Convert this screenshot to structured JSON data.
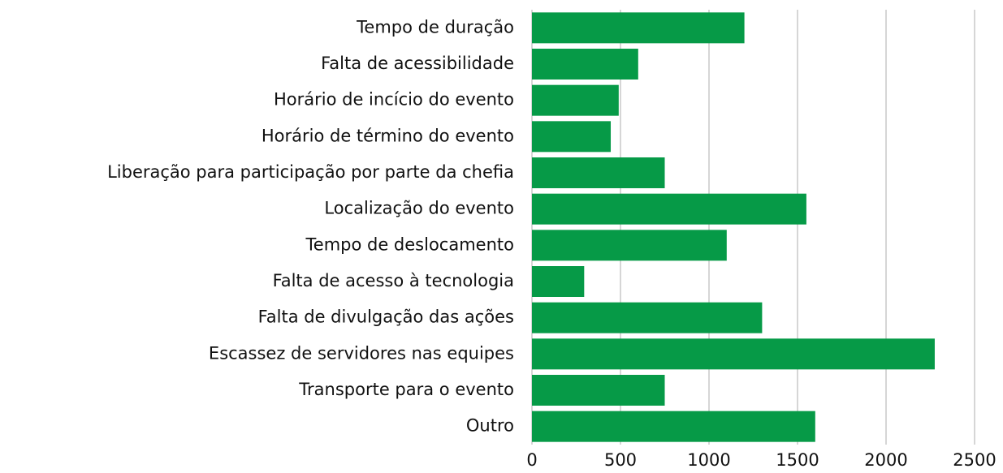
{
  "chart_data": {
    "type": "bar",
    "orientation": "horizontal",
    "categories": [
      "Tempo de duração",
      "Falta de acessibilidade",
      "Horário de incício do evento",
      "Horário de término do evento",
      "Liberação para participação por parte da chefia",
      "Localização do evento",
      "Tempo de deslocamento",
      "Falta de acesso à tecnologia",
      "Falta de divulgação das ações",
      "Escassez de servidores nas equipes",
      "Transporte para o evento",
      "Outro"
    ],
    "values": [
      1200,
      600,
      490,
      445,
      750,
      1550,
      1100,
      295,
      1300,
      2275,
      750,
      1600
    ],
    "color": "#069a47",
    "xlim": [
      0,
      2500
    ],
    "xticks": [
      0,
      500,
      1000,
      1500,
      2000,
      2500
    ],
    "grid": true
  }
}
